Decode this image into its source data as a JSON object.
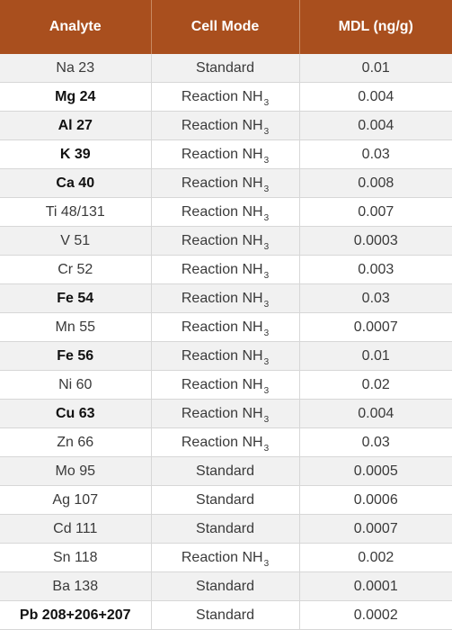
{
  "table": {
    "headers": [
      "Analyte",
      "Cell Mode",
      "MDL (ng/g)"
    ],
    "rows": [
      {
        "analyte": "Na 23",
        "bold": false,
        "mode": "Standard",
        "mode_sub": "",
        "mdl": "0.01"
      },
      {
        "analyte": "Mg 24",
        "bold": true,
        "mode": "Reaction NH",
        "mode_sub": "3",
        "mdl": "0.004"
      },
      {
        "analyte": "Al 27",
        "bold": true,
        "mode": "Reaction NH",
        "mode_sub": "3",
        "mdl": "0.004"
      },
      {
        "analyte": "K 39",
        "bold": true,
        "mode": "Reaction NH",
        "mode_sub": "3",
        "mdl": "0.03"
      },
      {
        "analyte": "Ca 40",
        "bold": true,
        "mode": "Reaction NH",
        "mode_sub": "3",
        "mdl": "0.008"
      },
      {
        "analyte": "Ti 48/131",
        "bold": false,
        "mode": "Reaction NH",
        "mode_sub": "3",
        "mdl": "0.007"
      },
      {
        "analyte": "V 51",
        "bold": false,
        "mode": "Reaction NH",
        "mode_sub": "3",
        "mdl": "0.0003"
      },
      {
        "analyte": "Cr 52",
        "bold": false,
        "mode": "Reaction NH",
        "mode_sub": "3",
        "mdl": "0.003"
      },
      {
        "analyte": "Fe 54",
        "bold": true,
        "mode": "Reaction NH",
        "mode_sub": "3",
        "mdl": "0.03"
      },
      {
        "analyte": "Mn 55",
        "bold": false,
        "mode": "Reaction NH",
        "mode_sub": "3",
        "mdl": "0.0007"
      },
      {
        "analyte": "Fe 56",
        "bold": true,
        "mode": "Reaction NH",
        "mode_sub": "3",
        "mdl": "0.01"
      },
      {
        "analyte": "Ni 60",
        "bold": false,
        "mode": "Reaction NH",
        "mode_sub": "3",
        "mdl": "0.02"
      },
      {
        "analyte": "Cu 63",
        "bold": true,
        "mode": "Reaction NH",
        "mode_sub": "3",
        "mdl": "0.004"
      },
      {
        "analyte": "Zn 66",
        "bold": false,
        "mode": "Reaction NH",
        "mode_sub": "3",
        "mdl": "0.03"
      },
      {
        "analyte": "Mo 95",
        "bold": false,
        "mode": "Standard",
        "mode_sub": "",
        "mdl": "0.0005"
      },
      {
        "analyte": "Ag 107",
        "bold": false,
        "mode": "Standard",
        "mode_sub": "",
        "mdl": "0.0006"
      },
      {
        "analyte": "Cd 111",
        "bold": false,
        "mode": "Standard",
        "mode_sub": "",
        "mdl": "0.0007"
      },
      {
        "analyte": "Sn 118",
        "bold": false,
        "mode": "Reaction NH",
        "mode_sub": "3",
        "mdl": "0.002"
      },
      {
        "analyte": "Ba 138",
        "bold": false,
        "mode": "Standard",
        "mode_sub": "",
        "mdl": "0.0001"
      },
      {
        "analyte": "Pb 208+206+207",
        "bold": true,
        "mode": "Standard",
        "mode_sub": "",
        "mdl": "0.0002"
      }
    ]
  }
}
